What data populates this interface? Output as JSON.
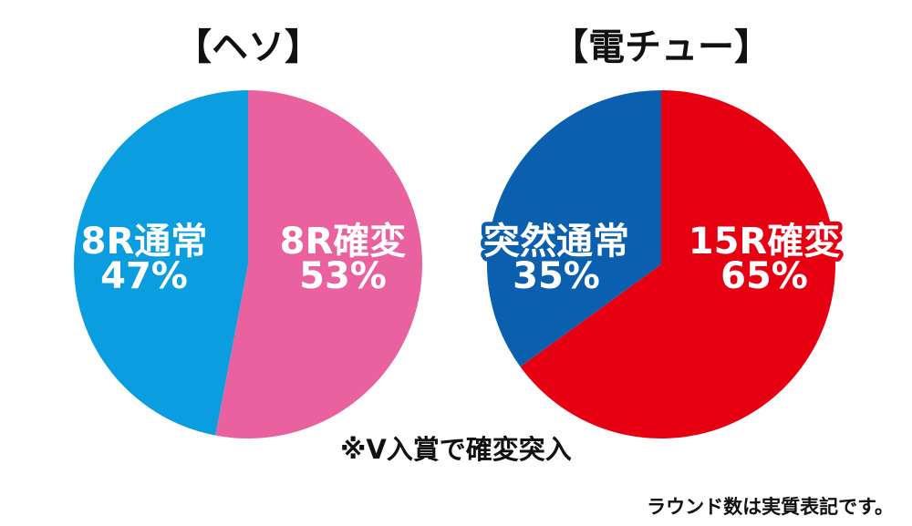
{
  "chart_data": [
    {
      "type": "pie",
      "title": "【ヘソ】",
      "slices": [
        {
          "name": "8R確変",
          "value": 53,
          "value_label": "53%",
          "color": "#e9629f"
        },
        {
          "name": "8R通常",
          "value": 47,
          "value_label": "47%",
          "color": "#0a9de0"
        }
      ]
    },
    {
      "type": "pie",
      "title": "【電チュー】",
      "slices": [
        {
          "name": "15R確変",
          "value": 65,
          "value_label": "65%",
          "color": "#e60012"
        },
        {
          "name": "突然通常",
          "value": 35,
          "value_label": "35%",
          "color": "#0a5fae"
        }
      ]
    }
  ],
  "notes": {
    "v_entry": "※V入賞で確変突入",
    "round_note": "ラウンド数は実質表記です。"
  }
}
